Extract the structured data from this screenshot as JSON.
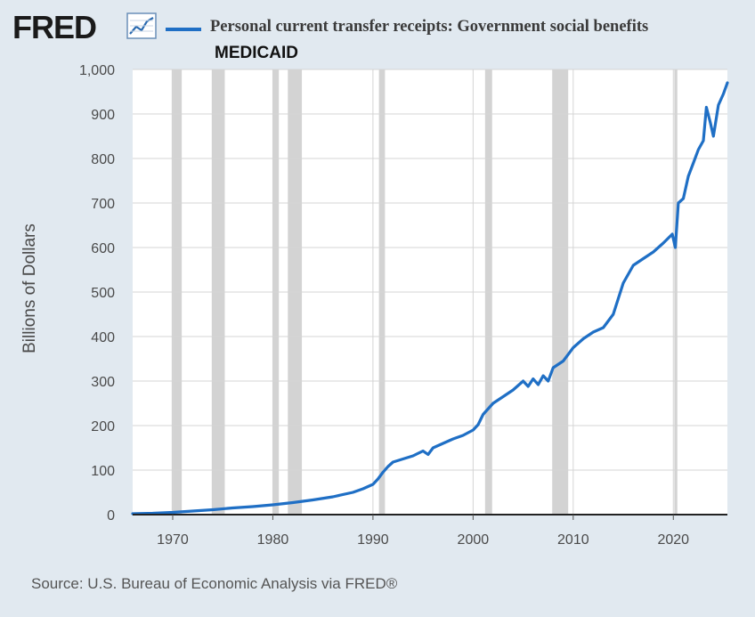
{
  "header": {
    "logo_text": "FRED",
    "logo_icon": "trend-line-icon",
    "legend_label": "Personal current transfer receipts: Government social benefits",
    "subtitle": "MEDICAID"
  },
  "footer": {
    "source": "Source: U.S. Bureau of Economic Analysis via FRED®"
  },
  "colors": {
    "series": "#1f6fc5",
    "background": "#e1e9f0",
    "plot": "#ffffff",
    "recession": "#c8c8c8"
  },
  "chart_data": {
    "type": "line",
    "title": "Personal current transfer receipts: Government social benefits",
    "subtitle": "MEDICAID",
    "xlabel": "",
    "ylabel": "Billions of Dollars",
    "xlim": [
      1966,
      2025.4
    ],
    "ylim": [
      0,
      1000
    ],
    "grid": true,
    "x_ticks": [
      1970,
      1980,
      1990,
      2000,
      2010,
      2020
    ],
    "y_ticks": [
      0,
      100,
      200,
      300,
      400,
      500,
      600,
      700,
      800,
      900,
      1000
    ],
    "y_tick_labels": [
      "0",
      "100",
      "200",
      "300",
      "400",
      "500",
      "600",
      "700",
      "800",
      "900",
      "1,000"
    ],
    "recessions": [
      [
        1969.9,
        1970.9
      ],
      [
        1973.9,
        1975.2
      ],
      [
        1980.0,
        1980.6
      ],
      [
        1981.5,
        1982.9
      ],
      [
        1990.6,
        1991.2
      ],
      [
        2001.2,
        2001.9
      ],
      [
        2007.9,
        2009.5
      ],
      [
        2020.1,
        2020.4
      ]
    ],
    "series": [
      {
        "name": "Personal current transfer receipts: Government social benefits",
        "x": [
          1966,
          1968,
          1970,
          1972,
          1974,
          1976,
          1978,
          1980,
          1982,
          1984,
          1986,
          1988,
          1989,
          1990,
          1990.5,
          1991,
          1991.5,
          1992,
          1993,
          1994,
          1995,
          1995.5,
          1996,
          1997,
          1998,
          1999,
          2000,
          2000.5,
          2001,
          2002,
          2003,
          2004,
          2005,
          2005.5,
          2006,
          2006.5,
          2007,
          2007.5,
          2008,
          2009,
          2010,
          2011,
          2012,
          2013,
          2014,
          2015,
          2016,
          2017,
          2018,
          2019,
          2019.9,
          2020.2,
          2020.5,
          2021,
          2021.5,
          2022,
          2022.5,
          2023,
          2023.3,
          2023.7,
          2024,
          2024.5,
          2025,
          2025.4
        ],
        "values": [
          2,
          3,
          5,
          8,
          11,
          15,
          18,
          22,
          27,
          33,
          40,
          50,
          58,
          68,
          80,
          95,
          108,
          118,
          125,
          132,
          143,
          135,
          150,
          160,
          170,
          178,
          190,
          202,
          225,
          250,
          265,
          280,
          300,
          288,
          305,
          292,
          312,
          300,
          330,
          345,
          375,
          395,
          410,
          420,
          450,
          520,
          560,
          575,
          590,
          610,
          630,
          600,
          700,
          710,
          760,
          790,
          820,
          840,
          915,
          880,
          850,
          920,
          945,
          970
        ]
      }
    ]
  }
}
